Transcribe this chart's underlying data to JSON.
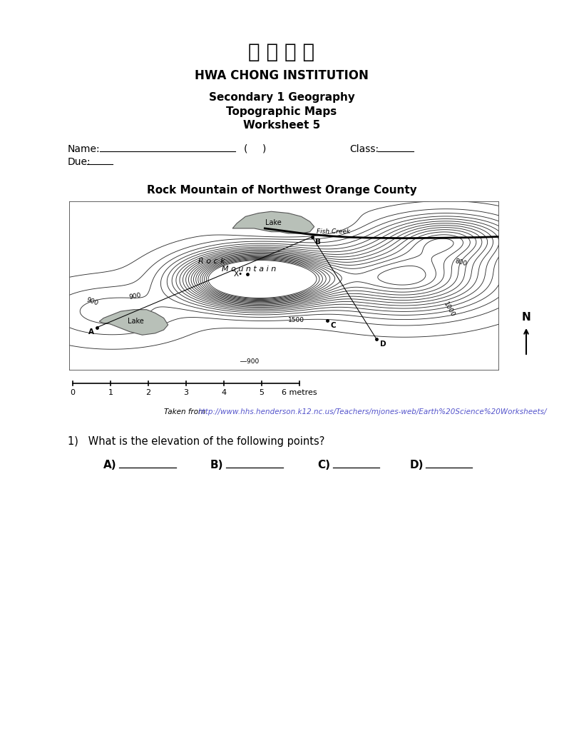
{
  "title_chinese": "华 儂 中 学",
  "title_institution": "HWA CHONG INSTITUTION",
  "subtitle1": "Secondary 1 Geography",
  "subtitle2": "Topographic Maps",
  "subtitle3": "Worksheet 5",
  "map_title": "Rock Mountain of Northwest Orange County",
  "name_label": "Name:",
  "class_label": "Class:",
  "due_label": "Due:",
  "source_text": "Taken from ",
  "source_url": "http://www.hhs.henderson.k12.nc.us/Teachers/mjones-web/Earth%20Science%20Worksheets/",
  "question1": "1)   What is the elevation of the following points?",
  "answer_labels": [
    "A)",
    "B)",
    "C)",
    "D)"
  ],
  "scale_labels": [
    "0",
    "1",
    "2",
    "3",
    "4",
    "5",
    "6 metres"
  ],
  "bg_color": "#ffffff",
  "map_bg": "#ffffff",
  "contour_color": "#333333",
  "lake_color": "#b8c0b8",
  "lake_edge": "#555555"
}
